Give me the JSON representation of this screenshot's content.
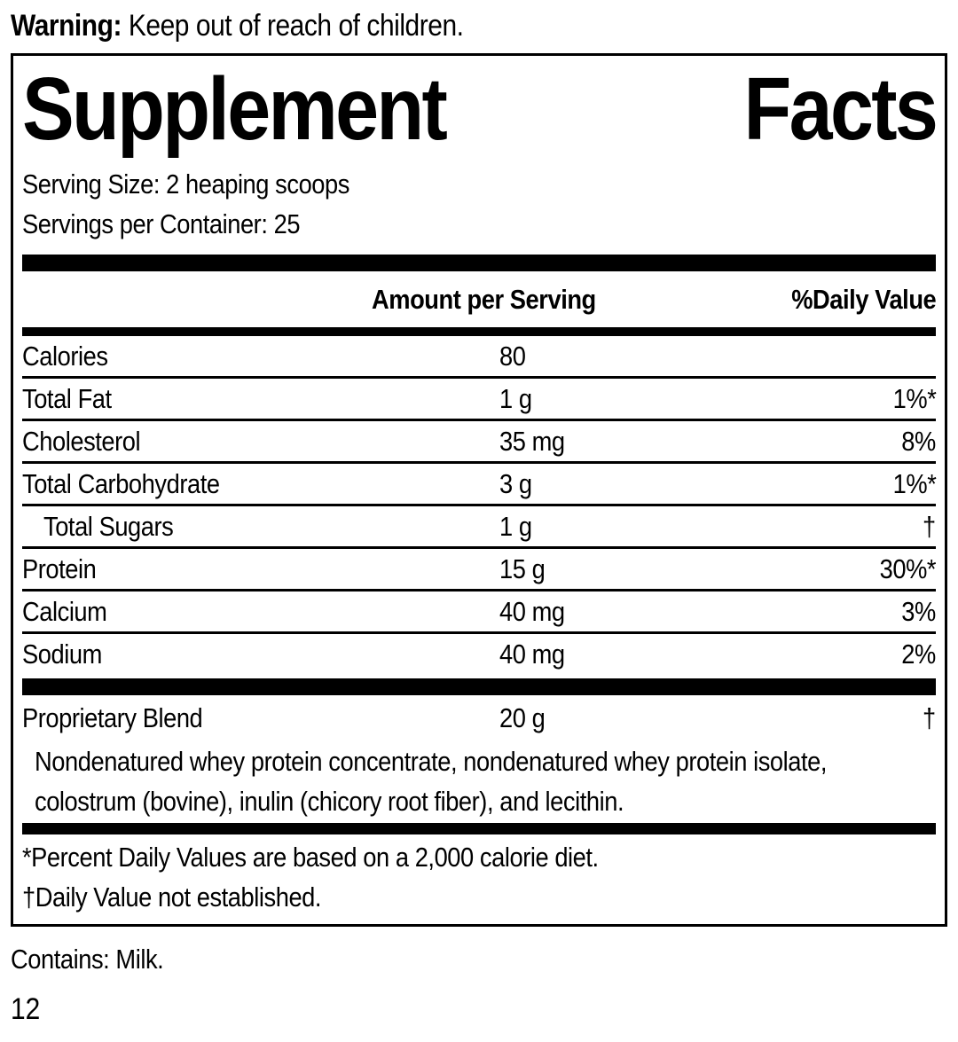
{
  "warning": {
    "label": "Warning:",
    "text": "Keep out of reach of children."
  },
  "panel": {
    "title_word1": "Supplement",
    "title_word2": "Facts",
    "serving_size": "Serving Size: 2 heaping scoops",
    "servings_per_container": "Servings per Container: 25",
    "columns": {
      "amount": "Amount per Serving",
      "daily_value": "%Daily Value"
    },
    "rows": [
      {
        "label": "Calories",
        "amount": "80",
        "dv": ""
      },
      {
        "label": "Total Fat",
        "amount": "1 g",
        "dv": "1%*"
      },
      {
        "label": "Cholesterol",
        "amount": "35 mg",
        "dv": "8%"
      },
      {
        "label": "Total Carbohydrate",
        "amount": "3 g",
        "dv": "1%*"
      },
      {
        "label": "Total Sugars",
        "amount": "1 g",
        "dv": "†"
      },
      {
        "label": "Protein",
        "amount": "15 g",
        "dv": "30%*"
      },
      {
        "label": "Calcium",
        "amount": "40 mg",
        "dv": "3%"
      },
      {
        "label": "Sodium",
        "amount": "40 mg",
        "dv": "2%"
      }
    ],
    "proprietary": {
      "label": "Proprietary Blend",
      "amount": "20 g",
      "dv": "†"
    },
    "ingredients_line1": "Nondenatured whey protein concentrate, nondenatured whey protein isolate,",
    "ingredients_line2": "colostrum (bovine), inulin (chicory root fiber), and lecithin.",
    "footnote_percent": "*Percent Daily Values are based on a 2,000 calorie diet.",
    "footnote_dagger": "†Daily Value not established."
  },
  "contains": "Contains: Milk.",
  "page_number": "12",
  "colors": {
    "text": "#000000",
    "background": "#ffffff"
  }
}
